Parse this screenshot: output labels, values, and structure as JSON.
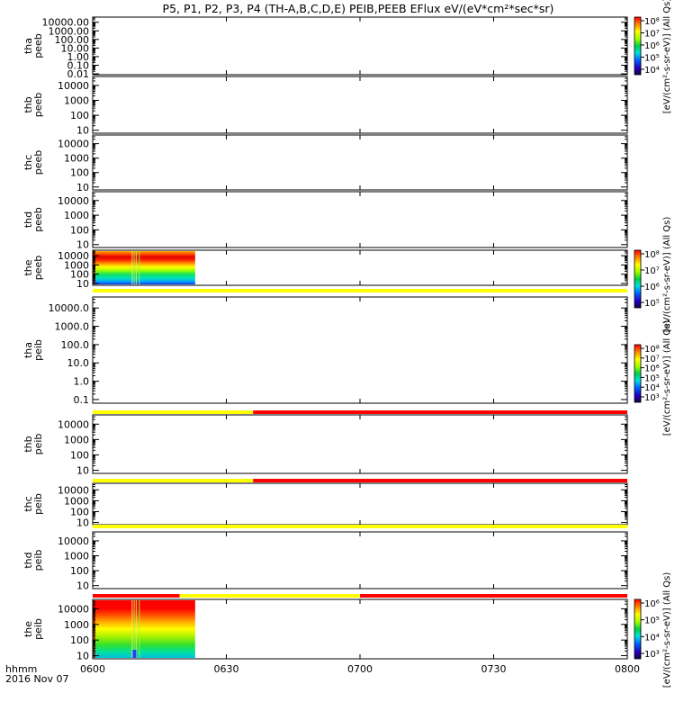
{
  "title": "P5, P1, P2, P3, P4 (TH-A,B,C,D,E) PEIB,PEEB EFlux eV/(eV*cm²*sec*sr)",
  "colors": {
    "flag_yellow": "#ffff00",
    "flag_red": "#ff0000",
    "axes": "#000000",
    "background": "#ffffff"
  },
  "chart_data": {
    "type": "heatmap",
    "x_ticks": [
      "0600",
      "0630",
      "0700",
      "0730",
      "0800"
    ],
    "x_minutes": [
      0,
      30,
      60,
      90,
      120
    ],
    "x_label_left": "hhmm",
    "date_label": "2016 Nov 07",
    "panels": [
      {
        "id": "tha-peeb",
        "label": [
          "tha",
          "peeb"
        ],
        "yticks": [
          "10000.00",
          "1000.00",
          "100.00",
          "10.00",
          "1.00",
          "0.10",
          "0.01"
        ],
        "ylog": [
          4,
          3,
          2,
          1,
          0,
          -1,
          -2
        ],
        "ylim_log": [
          -2.1,
          4.6
        ],
        "data": null,
        "flag": null
      },
      {
        "id": "thb-peeb",
        "label": [
          "thb",
          "peeb"
        ],
        "yticks": [
          "10000",
          "1000",
          "100",
          "10"
        ],
        "ylog": [
          4,
          3,
          2,
          1
        ],
        "ylim_log": [
          0.8,
          4.6
        ],
        "data": null,
        "flag": null
      },
      {
        "id": "thc-peeb",
        "label": [
          "thc",
          "peeb"
        ],
        "yticks": [
          "10000",
          "1000",
          "100",
          "10"
        ],
        "ylog": [
          4,
          3,
          2,
          1
        ],
        "ylim_log": [
          0.8,
          4.6
        ],
        "data": null,
        "flag": null
      },
      {
        "id": "thd-peeb",
        "label": [
          "thd",
          "peeb"
        ],
        "yticks": [
          "10000",
          "1000",
          "100",
          "10"
        ],
        "ylog": [
          4,
          3,
          2,
          1
        ],
        "ylim_log": [
          0.8,
          4.6
        ],
        "data": null,
        "flag": null
      },
      {
        "id": "the-peeb",
        "label": [
          "the",
          "peeb"
        ],
        "yticks": [
          "10000",
          "1000",
          "100",
          "10"
        ],
        "ylog": [
          4,
          3,
          2,
          1
        ],
        "ylim_log": [
          0.8,
          4.6
        ],
        "data": {
          "t_start_min": 0,
          "t_end_min": 23,
          "kind": "electron"
        },
        "flag": [
          {
            "from_min": 0,
            "to_min": 120,
            "color": "yellow"
          }
        ]
      },
      {
        "id": "tha-peib",
        "label": [
          "tha",
          "peib"
        ],
        "yticks": [
          "10000.0",
          "1000.0",
          "100.0",
          "10.0",
          "1.0",
          "0.1"
        ],
        "ylog": [
          4,
          3,
          2,
          1,
          0,
          -1
        ],
        "ylim_log": [
          -1.2,
          4.6
        ],
        "data": null,
        "flag": [
          {
            "from_min": 0,
            "to_min": 36,
            "color": "yellow"
          },
          {
            "from_min": 36,
            "to_min": 120,
            "color": "red"
          }
        ]
      },
      {
        "id": "thb-peib",
        "label": [
          "thb",
          "peib"
        ],
        "yticks": [
          "10000",
          "1000",
          "100",
          "10"
        ],
        "ylog": [
          4,
          3,
          2,
          1
        ],
        "ylim_log": [
          0.8,
          4.6
        ],
        "data": null,
        "flag": [
          {
            "from_min": 0,
            "to_min": 36,
            "color": "yellow"
          },
          {
            "from_min": 36,
            "to_min": 120,
            "color": "red"
          }
        ]
      },
      {
        "id": "thc-peib",
        "label": [
          "thc",
          "peib"
        ],
        "yticks": [
          "10000",
          "1000",
          "100",
          "10"
        ],
        "ylog": [
          4,
          3,
          2,
          1
        ],
        "ylim_log": [
          0.8,
          4.6
        ],
        "data": null,
        "flag": [
          {
            "from_min": 0,
            "to_min": 120,
            "color": "yellow"
          }
        ]
      },
      {
        "id": "thd-peib",
        "label": [
          "thd",
          "peib"
        ],
        "yticks": [
          "10000",
          "1000",
          "100",
          "10"
        ],
        "ylog": [
          4,
          3,
          2,
          1
        ],
        "ylim_log": [
          0.8,
          4.6
        ],
        "data": null,
        "flag": [
          {
            "from_min": 0,
            "to_min": 19.5,
            "color": "red"
          },
          {
            "from_min": 19.5,
            "to_min": 60,
            "color": "yellow"
          },
          {
            "from_min": 60,
            "to_min": 120,
            "color": "red"
          }
        ]
      },
      {
        "id": "the-peib",
        "label": [
          "the",
          "peib"
        ],
        "yticks": [
          "10000",
          "1000",
          "100",
          "10"
        ],
        "ylog": [
          4,
          3,
          2,
          1
        ],
        "ylim_log": [
          0.8,
          4.6
        ],
        "data": {
          "t_start_min": 0,
          "t_end_min": 23,
          "kind": "ion"
        },
        "flag": null
      }
    ],
    "colorbars": [
      {
        "id": "cbar-1",
        "panel": "tha-peeb",
        "ticks": [
          "10⁸",
          "10⁷",
          "10⁶",
          "10⁵",
          "10⁴"
        ],
        "label": "[eV/(cm²-s-sr-eV)] (All Qs)"
      },
      {
        "id": "cbar-2",
        "panel": "the-peeb",
        "ticks": [
          "10⁸",
          "10⁷",
          "10⁶",
          "10⁵"
        ],
        "label": "[eV/(cm²-s-sr-eV)] (All Qs)"
      },
      {
        "id": "cbar-3",
        "panel": "tha-peib",
        "ticks": [
          "10⁸",
          "10⁷",
          "10⁶",
          "10⁵",
          "10⁴",
          "10³"
        ],
        "label": "[eV/(cm²-s-sr-eV)] (All Qs)"
      },
      {
        "id": "cbar-4",
        "panel": "the-peib",
        "ticks": [
          "10⁶",
          "10⁵",
          "10⁴",
          "10³"
        ],
        "label": "[eV/(cm²-s-sr-eV)] (All Qs)"
      }
    ]
  }
}
